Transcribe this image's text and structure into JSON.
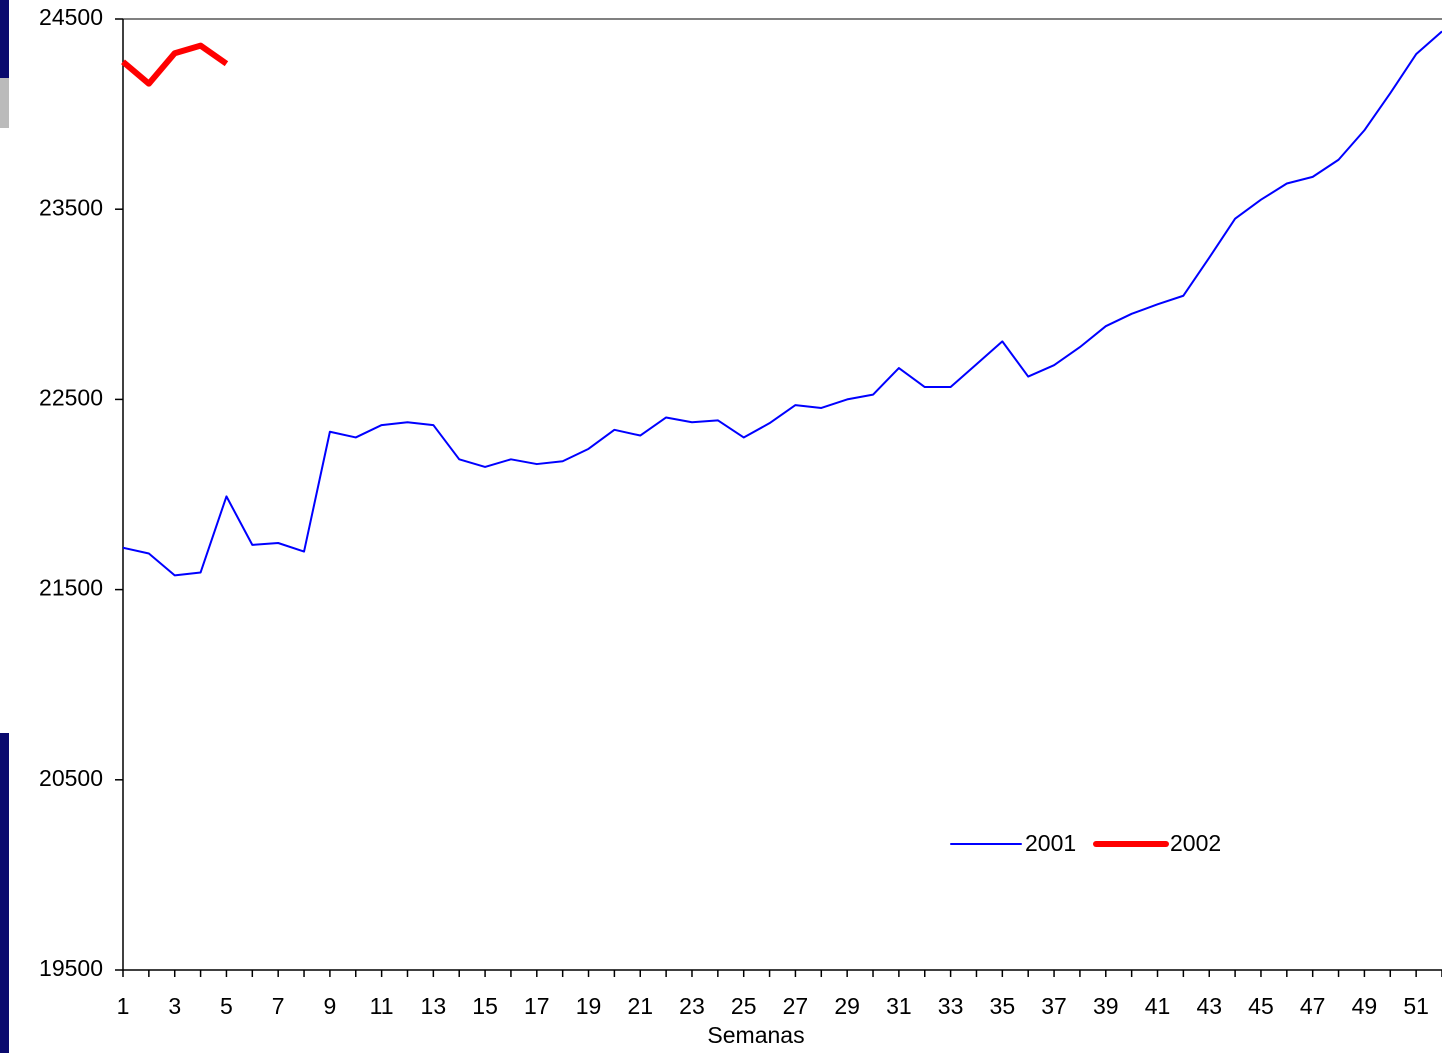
{
  "chart_data": {
    "type": "line",
    "x_label": "Semanas",
    "x": [
      1,
      2,
      3,
      4,
      5,
      6,
      7,
      8,
      9,
      10,
      11,
      12,
      13,
      14,
      15,
      16,
      17,
      18,
      19,
      20,
      21,
      22,
      23,
      24,
      25,
      26,
      27,
      28,
      29,
      30,
      31,
      32,
      33,
      34,
      35,
      36,
      37,
      38,
      39,
      40,
      41,
      42,
      43,
      44,
      45,
      46,
      47,
      48,
      49,
      50,
      51,
      52
    ],
    "series": [
      {
        "name": "2001",
        "color": "#0000ff",
        "width": 2,
        "values": [
          21720,
          21690,
          21575,
          21590,
          21990,
          21735,
          21745,
          21700,
          22330,
          22300,
          22365,
          22380,
          22365,
          22185,
          22145,
          22185,
          22160,
          22175,
          22240,
          22340,
          22310,
          22405,
          22380,
          22390,
          22300,
          22375,
          22470,
          22455,
          22500,
          22525,
          22665,
          22565,
          22565,
          22685,
          22805,
          22620,
          22680,
          22775,
          22885,
          22950,
          23000,
          23045,
          23245,
          23450,
          23550,
          23635,
          23670,
          23760,
          23915,
          24110,
          24315,
          24435
        ]
      },
      {
        "name": "2002",
        "color": "#ff0000",
        "width": 6,
        "values": [
          24275,
          24160,
          24320,
          24360,
          24265,
          null,
          null,
          null,
          null,
          null,
          null,
          null,
          null,
          null,
          null,
          null,
          null,
          null,
          null,
          null,
          null,
          null,
          null,
          null,
          null,
          null,
          null,
          null,
          null,
          null,
          null,
          null,
          null,
          null,
          null,
          null,
          null,
          null,
          null,
          null,
          null,
          null,
          null,
          null,
          null,
          null,
          null,
          null,
          null,
          null,
          null,
          null
        ]
      }
    ],
    "xlim": [
      1,
      52
    ],
    "xticks": [
      1,
      3,
      5,
      7,
      9,
      11,
      13,
      15,
      17,
      19,
      21,
      23,
      25,
      27,
      29,
      31,
      33,
      35,
      37,
      39,
      41,
      43,
      45,
      47,
      49,
      51
    ],
    "ylim": [
      19500,
      24500
    ],
    "yticks": [
      19500,
      20500,
      21500,
      22500,
      23500,
      24500
    ]
  }
}
